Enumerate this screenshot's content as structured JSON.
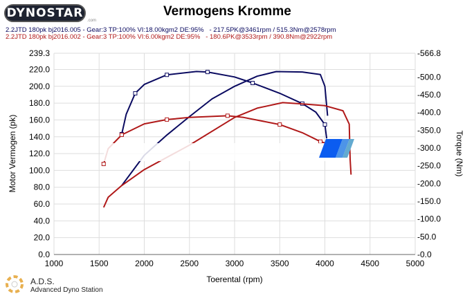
{
  "header": {
    "logo": "DYNOSTAR",
    "logo_suffix": ".com",
    "title": "Vermogens Kromme"
  },
  "legend": [
    {
      "text": "2.2JTD 180pk bj2016.005 - Gear:3 TP:100% VI:18.00kgm2 DE:95%   - 217.5PK@3461rpm / 515.3Nm@2578rpm",
      "color": "#0a0a60"
    },
    {
      "text": "2.2JTD 180pk bj2016.002 - Gear:3 TP:100% VI:6.00kgm2 DE:95%   - 180.6PK@3533rpm / 390.8Nm@2922rpm",
      "color": "#b01818"
    }
  ],
  "footer": {
    "brand": "A.D.S.",
    "brand_full": "Advanced Dyno Station"
  },
  "chart_data": {
    "type": "line",
    "title": "Vermogens Kromme",
    "xlabel": "Toerental (rpm)",
    "ylabel": "Motor Vermogen (pk)",
    "y2label": "Torque (Nm)",
    "xlim": [
      1000,
      5000
    ],
    "ylim": [
      0,
      239.3
    ],
    "y2lim": [
      0,
      566.8
    ],
    "xticks": [
      "1000",
      "1500",
      "2000",
      "2500",
      "3000",
      "3500",
      "4000",
      "4500",
      "5000"
    ],
    "yticks": [
      "0.0",
      "20.0",
      "40.0",
      "60.0",
      "80.0",
      "100.0",
      "120.0",
      "140.0",
      "160.0",
      "180.0",
      "200.0",
      "220.0",
      "239.3"
    ],
    "y2ticks": [
      "-0.0",
      "-50.0",
      "-100.0",
      "-150.0",
      "-200.0",
      "-250.0",
      "-300.0",
      "-350.0",
      "-400.0",
      "-450.0",
      "-500.0",
      "-566.8"
    ],
    "grid": true,
    "series": [
      {
        "name": "Run 005 power (pk)",
        "axis": "left",
        "color": "#0a0a60",
        "markers": false,
        "points": [
          [
            1750,
            82
          ],
          [
            2000,
            118
          ],
          [
            2250,
            142
          ],
          [
            2500,
            164
          ],
          [
            2750,
            185
          ],
          [
            3000,
            200
          ],
          [
            3250,
            212
          ],
          [
            3461,
            217.5
          ],
          [
            3750,
            217
          ],
          [
            3950,
            214
          ],
          [
            4000,
            200
          ],
          [
            4030,
            165
          ]
        ]
      },
      {
        "name": "Run 005 torque (Nm)",
        "axis": "right",
        "color": "#0a0a60",
        "markers": true,
        "points": [
          [
            1750,
            339
          ],
          [
            1800,
            395
          ],
          [
            1900,
            454
          ],
          [
            2000,
            479
          ],
          [
            2250,
            506
          ],
          [
            2578,
            515.3
          ],
          [
            2700,
            514
          ],
          [
            3000,
            500
          ],
          [
            3200,
            483
          ],
          [
            3500,
            454
          ],
          [
            3750,
            425
          ],
          [
            3900,
            401
          ],
          [
            4000,
            366
          ],
          [
            4020,
            327
          ]
        ]
      },
      {
        "name": "Run 002 power (pk)",
        "axis": "left",
        "color": "#b01818",
        "markers": false,
        "points": [
          [
            1550,
            56
          ],
          [
            1600,
            68
          ],
          [
            1750,
            82
          ],
          [
            2000,
            101
          ],
          [
            2500,
            130
          ],
          [
            3000,
            163
          ],
          [
            3250,
            174
          ],
          [
            3533,
            180.6
          ],
          [
            3750,
            179
          ],
          [
            4000,
            177
          ],
          [
            4200,
            171
          ],
          [
            4270,
            155
          ],
          [
            4280,
            113
          ],
          [
            4290,
            95
          ]
        ]
      },
      {
        "name": "Run 002 torque (Nm)",
        "axis": "right",
        "color": "#b01818",
        "markers": true,
        "points": [
          [
            1550,
            255
          ],
          [
            1600,
            298
          ],
          [
            1750,
            337
          ],
          [
            2000,
            368
          ],
          [
            2250,
            380
          ],
          [
            2500,
            386
          ],
          [
            2922,
            390.8
          ],
          [
            3100,
            386
          ],
          [
            3500,
            366
          ],
          [
            3750,
            343
          ],
          [
            3950,
            318
          ],
          [
            4030,
            312
          ]
        ]
      }
    ]
  }
}
